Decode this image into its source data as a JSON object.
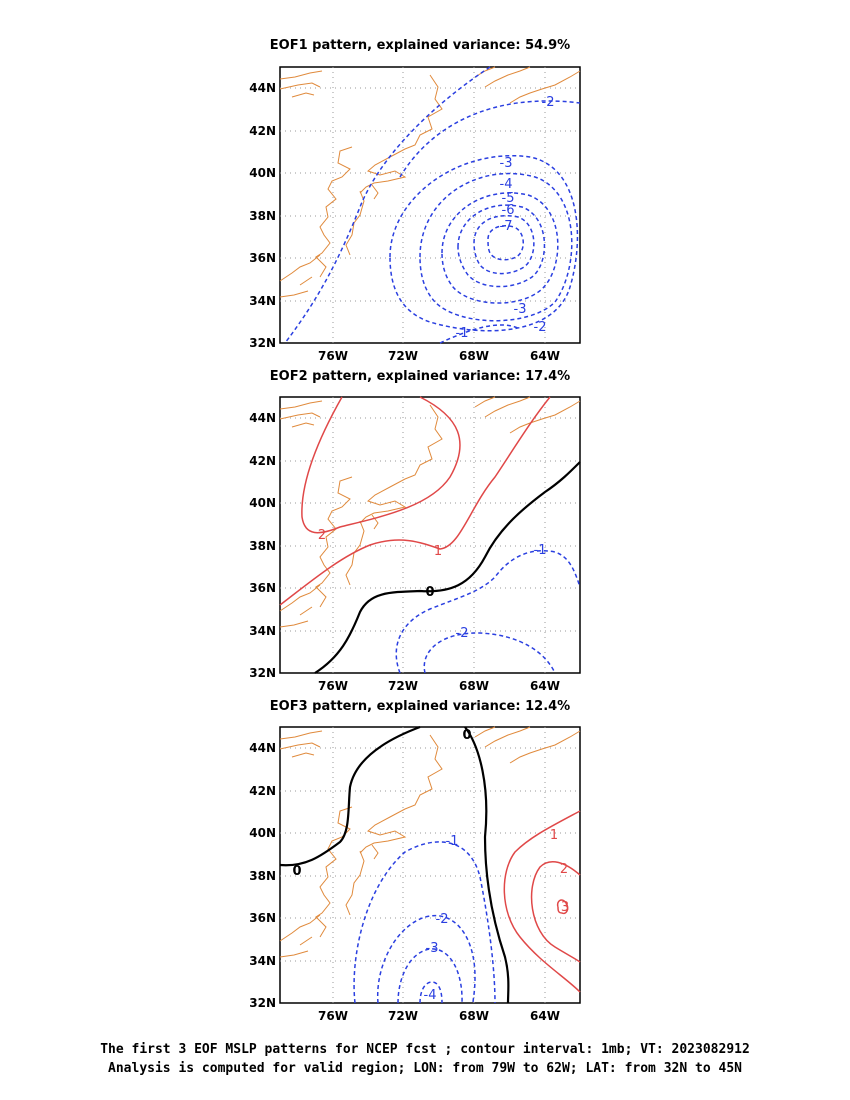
{
  "panels": [
    {
      "title": "EOF1 pattern, explained variance: 54.9%",
      "contour_labels": [
        "-1",
        "-2",
        "-2",
        "-3",
        "-3",
        "-4",
        "-5",
        "-6",
        "-7"
      ]
    },
    {
      "title": "EOF2 pattern, explained variance: 17.4%",
      "contour_labels": [
        "2",
        "1",
        "0",
        "-1",
        "-2"
      ]
    },
    {
      "title": "EOF3 pattern, explained variance: 12.4%",
      "contour_labels": [
        "0",
        "0",
        "-1",
        "-2",
        "-3",
        "-4",
        "1",
        "2",
        "3"
      ]
    }
  ],
  "axes": {
    "lat_ticks": [
      "44N",
      "42N",
      "40N",
      "38N",
      "36N",
      "34N",
      "32N"
    ],
    "lon_ticks": [
      "76W",
      "72W",
      "68W",
      "64W"
    ]
  },
  "colors": {
    "coastline": "#e08a3c",
    "negative": "#2a3fe0",
    "positive": "#e04848",
    "zero": "#000000",
    "grid": "#9a9a9a"
  },
  "caption": {
    "line1": "The first 3 EOF MSLP patterns for NCEP fcst ; contour interval: 1mb; VT: 2023082912",
    "line2": "Analysis is computed for valid region; LON: from 79W to 62W; LAT: from 32N to 45N"
  }
}
